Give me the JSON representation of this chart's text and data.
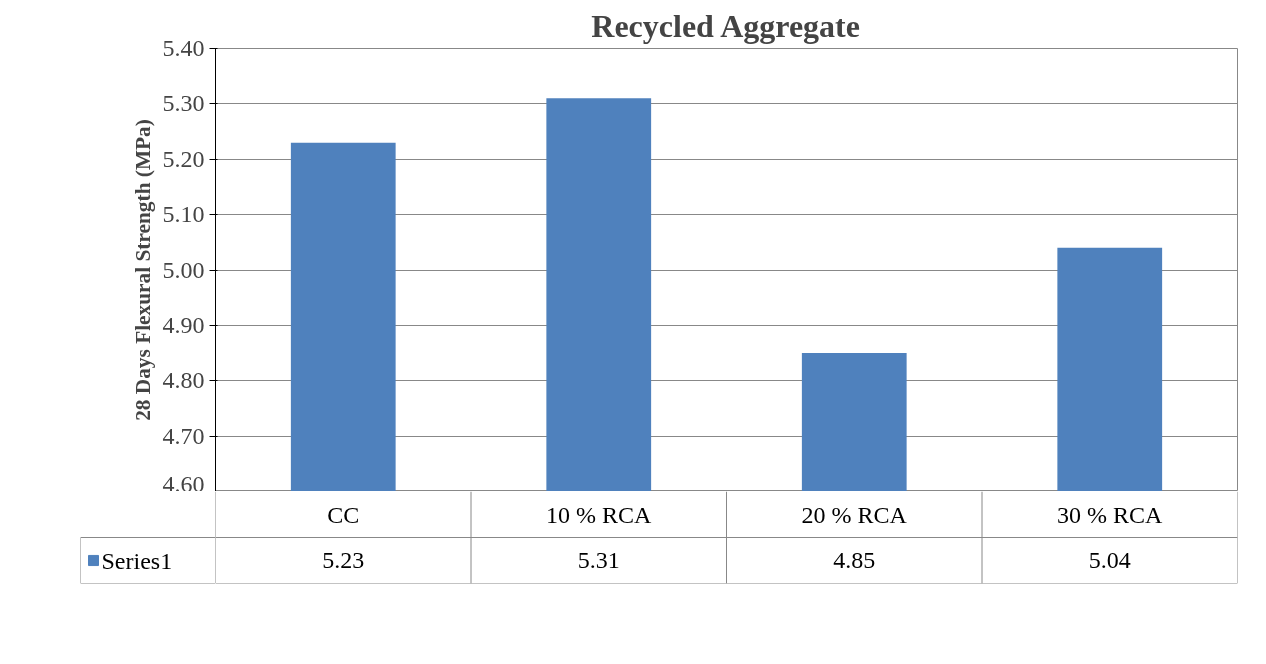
{
  "chart_data": {
    "type": "bar",
    "title": "Recycled Aggregate",
    "ylabel": "28 Days Flexural Strength (MPa)",
    "categories": [
      "CC",
      "10 % RCA",
      "20 % RCA",
      "30 % RCA"
    ],
    "series": [
      {
        "name": "Series1",
        "color": "#4f81bd",
        "values": [
          5.23,
          5.31,
          4.85,
          5.04
        ]
      }
    ],
    "ylim": [
      4.6,
      5.4
    ],
    "yticks": [
      {
        "value": 4.6,
        "label": "4.60"
      },
      {
        "value": 4.7,
        "label": "4.70"
      },
      {
        "value": 4.8,
        "label": "4.80"
      },
      {
        "value": 4.9,
        "label": "4.90"
      },
      {
        "value": 5.0,
        "label": "5.00"
      },
      {
        "value": 5.1,
        "label": "5.10"
      },
      {
        "value": 5.2,
        "label": "5.20"
      },
      {
        "value": 5.3,
        "label": "5.30"
      },
      {
        "value": 5.4,
        "label": "5.40"
      }
    ],
    "grid": "y",
    "data_labels": true,
    "legend": "bottom"
  }
}
